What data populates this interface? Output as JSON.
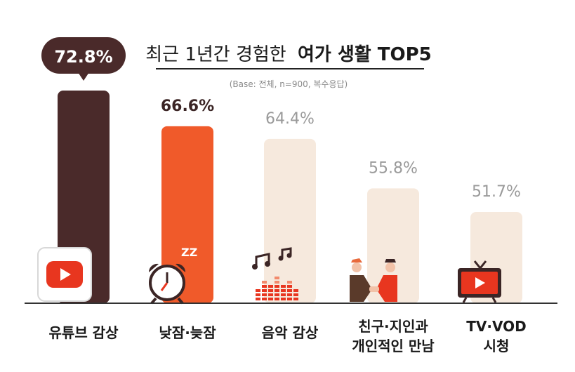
{
  "chart_data": {
    "type": "bar",
    "title_prefix": "최근 1년간 경험한",
    "title_emphasis": "여가 생활 TOP5",
    "subtitle": "(Base: 전체, n=900, 복수응답)",
    "categories": [
      "유튜브 감상",
      "낮잠·늦잠",
      "음악 감상",
      "친구·지인과 개인적인 만남",
      "TV·VOD 시청"
    ],
    "category_lines": [
      [
        "유튜브 감상"
      ],
      [
        "낮잠·늦잠"
      ],
      [
        "음악 감상"
      ],
      [
        "친구·지인과",
        "개인적인 만남"
      ],
      [
        "TV·VOD",
        "시청"
      ]
    ],
    "values": [
      72.8,
      66.6,
      64.4,
      55.8,
      51.7
    ],
    "value_labels": [
      "72.8%",
      "66.6%",
      "64.4%",
      "55.8%",
      "51.7%"
    ],
    "unit": "%",
    "ylim": [
      0,
      100
    ],
    "grid": false,
    "legend": "none",
    "icons": [
      "youtube-icon",
      "alarm-clock-icon",
      "music-equalizer-icon",
      "handshake-icon",
      "tv-play-icon"
    ],
    "colors": {
      "bar_top": "#4a2a2a",
      "bar_second": "#f05a2a",
      "bar_other": "#f6e9dd",
      "label_dark": "#3b2525",
      "label_light": "#9a9a9a",
      "baseline": "#333333",
      "accent_red": "#e8361f"
    }
  }
}
